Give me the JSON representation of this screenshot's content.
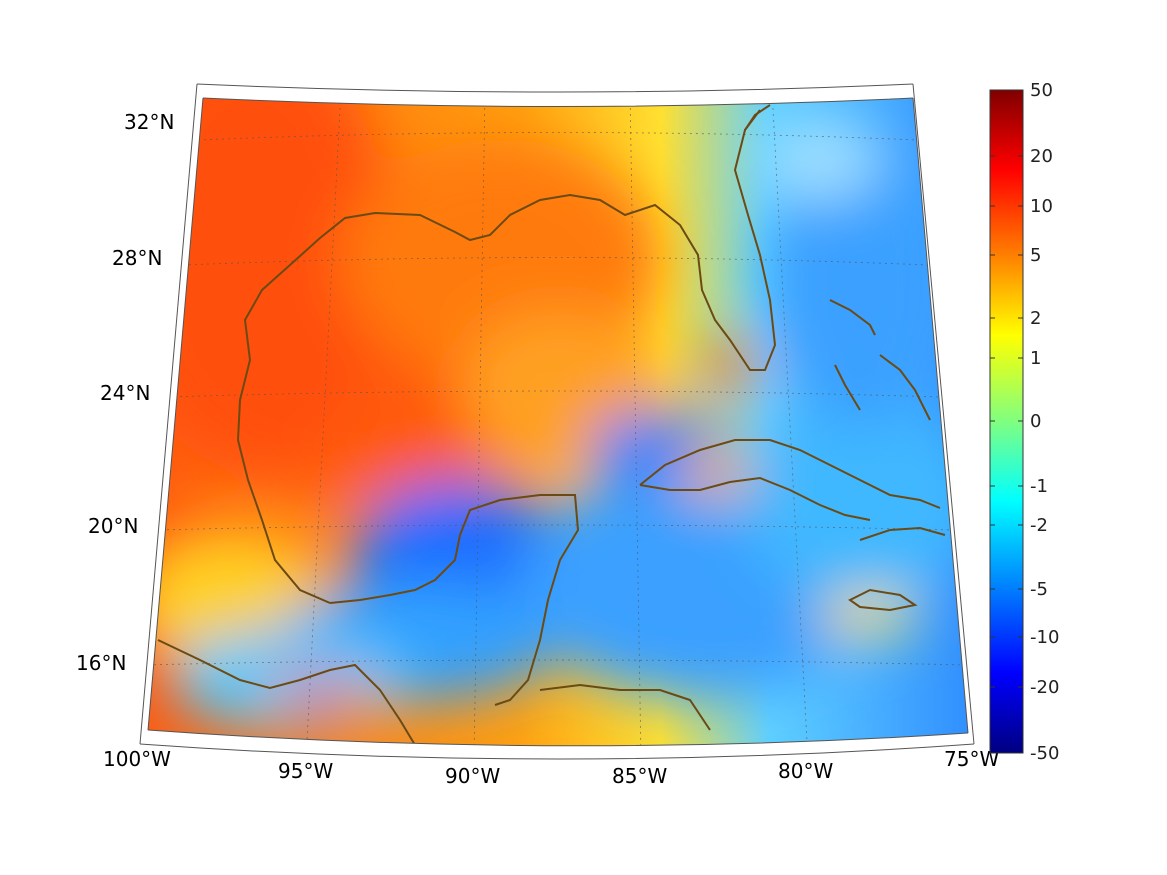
{
  "map": {
    "projection": "conic",
    "lon_range": [
      -100,
      -75
    ],
    "lat_range": [
      14,
      33
    ],
    "lon_ticks": [
      "100°W",
      "95°W",
      "90°W",
      "85°W",
      "80°W",
      "75°W"
    ],
    "lat_ticks": [
      "16°N",
      "20°N",
      "24°N",
      "28°N",
      "32°N"
    ],
    "coastline_color": "#6b4a14",
    "grid": true,
    "field_regions": [
      {
        "region": "northern Gulf of Mexico and Texas",
        "level": "5 to 10",
        "color": "#ff5a10"
      },
      {
        "region": "southeastern Gulf and Florida Straits",
        "level": "1 to 5",
        "color": "#ffc800"
      },
      {
        "region": "Bay of Campeche and Yucatan",
        "level": "-2 to -5",
        "color": "#1e7cff"
      },
      {
        "region": "Caribbean Sea",
        "level": "-2 to -5",
        "color": "#3fa6ff"
      },
      {
        "region": "Atlantic east of Florida",
        "level": "-1 to -5",
        "color": "#40b0ff"
      },
      {
        "region": "Gulf of Tehuantepec",
        "level": "5",
        "color": "#ff7a20"
      }
    ]
  },
  "colorbar": {
    "labels": [
      "50",
      "20",
      "10",
      "5",
      "2",
      "1",
      "0",
      "-1",
      "-2",
      "-5",
      "-10",
      "-20",
      "-50"
    ],
    "colormap": [
      "#800000",
      "#ff0000",
      "#ff8000",
      "#ffff00",
      "#80ff80",
      "#00ffff",
      "#0080ff",
      "#0000ff",
      "#000080"
    ]
  }
}
